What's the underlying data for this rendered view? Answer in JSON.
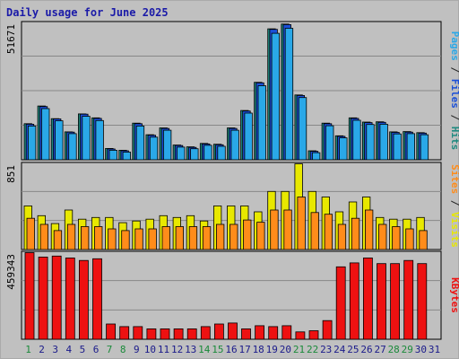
{
  "title": "Daily usage for June 2025",
  "right_labels": {
    "top": [
      {
        "text": "Pages",
        "color": "#2aa8e8"
      },
      {
        "text": " / ",
        "color": "#222222"
      },
      {
        "text": "Files",
        "color": "#1a4fd8"
      },
      {
        "text": " / ",
        "color": "#222222"
      },
      {
        "text": "Hits",
        "color": "#1f8a80"
      }
    ],
    "middle": [
      {
        "text": "Sites",
        "color": "#ff8c1a"
      },
      {
        "text": " / ",
        "color": "#222222"
      },
      {
        "text": "Visits",
        "color": "#e8e800"
      }
    ],
    "bottom": [
      {
        "text": "KBytes",
        "color": "#ee1111"
      }
    ]
  },
  "chart_data": [
    {
      "type": "bar",
      "panel": "hits-files-pages",
      "ymax_label": "51671",
      "ylim": [
        0,
        51671
      ],
      "categories": [
        "1",
        "2",
        "3",
        "4",
        "5",
        "6",
        "7",
        "8",
        "9",
        "10",
        "11",
        "12",
        "13",
        "14",
        "15",
        "16",
        "17",
        "18",
        "19",
        "20",
        "21",
        "22",
        "23",
        "24",
        "25",
        "26",
        "27",
        "28",
        "29",
        "30",
        "31"
      ],
      "series": [
        {
          "name": "Hits",
          "color": "#1f8a80",
          "values": [
            13700,
            20400,
            15600,
            10600,
            17400,
            15900,
            4300,
            3600,
            13900,
            9500,
            12100,
            5600,
            4900,
            6200,
            5900,
            12100,
            18700,
            29400,
            49700,
            51500,
            24600,
            3400,
            13900,
            9100,
            15900,
            14300,
            14400,
            10600,
            10700,
            10300,
            null
          ]
        },
        {
          "name": "Files",
          "color": "#1a4fd8",
          "values": [
            13500,
            20200,
            15500,
            10500,
            17300,
            15700,
            4100,
            3400,
            13700,
            9300,
            11900,
            5400,
            4700,
            6000,
            5700,
            11900,
            18500,
            29200,
            49500,
            51300,
            24400,
            3200,
            13700,
            8900,
            15700,
            14100,
            14200,
            10400,
            10500,
            10100,
            null
          ]
        },
        {
          "name": "Pages",
          "color": "#2aa8e8",
          "values": [
            12800,
            19400,
            14800,
            9900,
            16500,
            14900,
            3600,
            2900,
            12800,
            8600,
            11200,
            4800,
            4200,
            5500,
            5100,
            11200,
            17700,
            28100,
            48000,
            49900,
            23600,
            2700,
            12900,
            8300,
            15000,
            13400,
            13500,
            9800,
            9900,
            9500,
            null
          ]
        }
      ]
    },
    {
      "type": "bar",
      "panel": "visits-sites",
      "ymax_label": "851",
      "ylim": [
        0,
        851
      ],
      "categories": [
        "1",
        "2",
        "3",
        "4",
        "5",
        "6",
        "7",
        "8",
        "9",
        "10",
        "11",
        "12",
        "13",
        "14",
        "15",
        "16",
        "17",
        "18",
        "19",
        "20",
        "21",
        "22",
        "23",
        "24",
        "25",
        "26",
        "27",
        "28",
        "29",
        "30",
        "31"
      ],
      "series": [
        {
          "name": "Visits",
          "color": "#e8e800",
          "values": [
            433,
            336,
            257,
            392,
            301,
            318,
            318,
            266,
            283,
            301,
            336,
            318,
            336,
            283,
            433,
            433,
            433,
            374,
            576,
            576,
            851,
            576,
            521,
            374,
            472,
            521,
            318,
            301,
            301,
            318,
            null
          ]
        },
        {
          "name": "Sites",
          "color": "#ff8c1a",
          "values": [
            310,
            249,
            188,
            249,
            227,
            227,
            205,
            188,
            205,
            205,
            227,
            227,
            227,
            227,
            249,
            249,
            293,
            271,
            392,
            392,
            521,
            367,
            350,
            249,
            310,
            392,
            249,
            227,
            205,
            188,
            null
          ]
        }
      ]
    },
    {
      "type": "bar",
      "panel": "kbytes",
      "ymax_label": "459343",
      "ylim": [
        0,
        459343
      ],
      "categories": [
        "1",
        "2",
        "3",
        "4",
        "5",
        "6",
        "7",
        "8",
        "9",
        "10",
        "11",
        "12",
        "13",
        "14",
        "15",
        "16",
        "17",
        "18",
        "19",
        "20",
        "21",
        "22",
        "23",
        "24",
        "25",
        "26",
        "27",
        "28",
        "29",
        "30",
        "31"
      ],
      "series": [
        {
          "name": "KBytes",
          "color": "#ee1111",
          "values": [
            459000,
            436000,
            441000,
            431000,
            418000,
            427000,
            81000,
            67000,
            67000,
            55000,
            55000,
            55000,
            55000,
            67000,
            81000,
            86000,
            55000,
            72000,
            67000,
            72000,
            39000,
            45000,
            99000,
            384000,
            405000,
            431000,
            401000,
            401000,
            418000,
            401000,
            null
          ]
        }
      ]
    }
  ],
  "day_labels": [
    {
      "text": "1",
      "color": "#1a8a3a"
    },
    {
      "text": "2",
      "color": "#1a1a8a"
    },
    {
      "text": "3",
      "color": "#1a1a8a"
    },
    {
      "text": "4",
      "color": "#1a1a8a"
    },
    {
      "text": "5",
      "color": "#1a1a8a"
    },
    {
      "text": "6",
      "color": "#1a1a8a"
    },
    {
      "text": "7",
      "color": "#1a8a3a"
    },
    {
      "text": "8",
      "color": "#1a8a3a"
    },
    {
      "text": "9",
      "color": "#1a1a8a"
    },
    {
      "text": "10",
      "color": "#1a1a8a"
    },
    {
      "text": "11",
      "color": "#1a1a8a"
    },
    {
      "text": "12",
      "color": "#1a1a8a"
    },
    {
      "text": "13",
      "color": "#1a1a8a"
    },
    {
      "text": "14",
      "color": "#1a8a3a"
    },
    {
      "text": "15",
      "color": "#1a8a3a"
    },
    {
      "text": "16",
      "color": "#1a1a8a"
    },
    {
      "text": "17",
      "color": "#1a1a8a"
    },
    {
      "text": "18",
      "color": "#1a1a8a"
    },
    {
      "text": "19",
      "color": "#1a1a8a"
    },
    {
      "text": "20",
      "color": "#1a1a8a"
    },
    {
      "text": "21",
      "color": "#1a8a3a"
    },
    {
      "text": "22",
      "color": "#1a8a3a"
    },
    {
      "text": "23",
      "color": "#1a1a8a"
    },
    {
      "text": "24",
      "color": "#1a1a8a"
    },
    {
      "text": "25",
      "color": "#1a1a8a"
    },
    {
      "text": "26",
      "color": "#1a1a8a"
    },
    {
      "text": "27",
      "color": "#1a1a8a"
    },
    {
      "text": "28",
      "color": "#1a8a3a"
    },
    {
      "text": "29",
      "color": "#1a8a3a"
    },
    {
      "text": "30",
      "color": "#1a1a8a"
    },
    {
      "text": "31",
      "color": "#1a1a8a"
    }
  ]
}
